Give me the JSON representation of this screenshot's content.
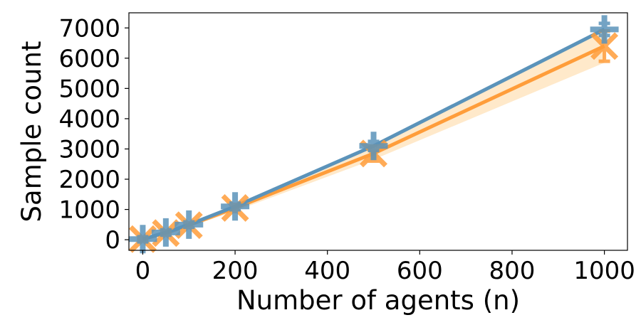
{
  "chart_data": {
    "type": "line",
    "title": "",
    "xlabel": "Number of agents (n)",
    "ylabel": "Sample count",
    "xlim": [
      -30,
      1050
    ],
    "ylim": [
      -350,
      7500
    ],
    "x_ticks": [
      0,
      200,
      400,
      600,
      800,
      1000
    ],
    "x_tick_labels": [
      "0",
      "200",
      "400",
      "600",
      "800",
      "1000"
    ],
    "y_ticks": [
      0,
      1000,
      2000,
      3000,
      4000,
      5000,
      6000,
      7000
    ],
    "y_tick_labels": [
      "0",
      "1000",
      "2000",
      "3000",
      "4000",
      "5000",
      "6000",
      "7000"
    ],
    "grid": false,
    "legend": "none",
    "series": [
      {
        "color": "#ff9d3a",
        "band_color": "#ffe2b8",
        "marker": "x",
        "x": [
          0,
          50,
          100,
          200,
          500,
          1000
        ],
        "y": [
          20,
          220,
          480,
          1050,
          2850,
          6400
        ],
        "y_low": [
          0,
          180,
          420,
          950,
          2650,
          5850
        ],
        "y_high": [
          50,
          260,
          540,
          1150,
          3050,
          6950
        ],
        "err_low": [
          0,
          170,
          400,
          930,
          2600,
          5900
        ],
        "err_high": [
          60,
          280,
          560,
          1170,
          3100,
          6900
        ]
      },
      {
        "color": "#5b93ba",
        "marker": "+",
        "x": [
          0,
          50,
          100,
          200,
          500,
          1000
        ],
        "y": [
          20,
          240,
          500,
          1100,
          3100,
          6950
        ],
        "err_low": [
          -70,
          150,
          410,
          990,
          2950,
          6750
        ],
        "err_high": [
          100,
          330,
          590,
          1210,
          3250,
          7150
        ]
      }
    ]
  }
}
